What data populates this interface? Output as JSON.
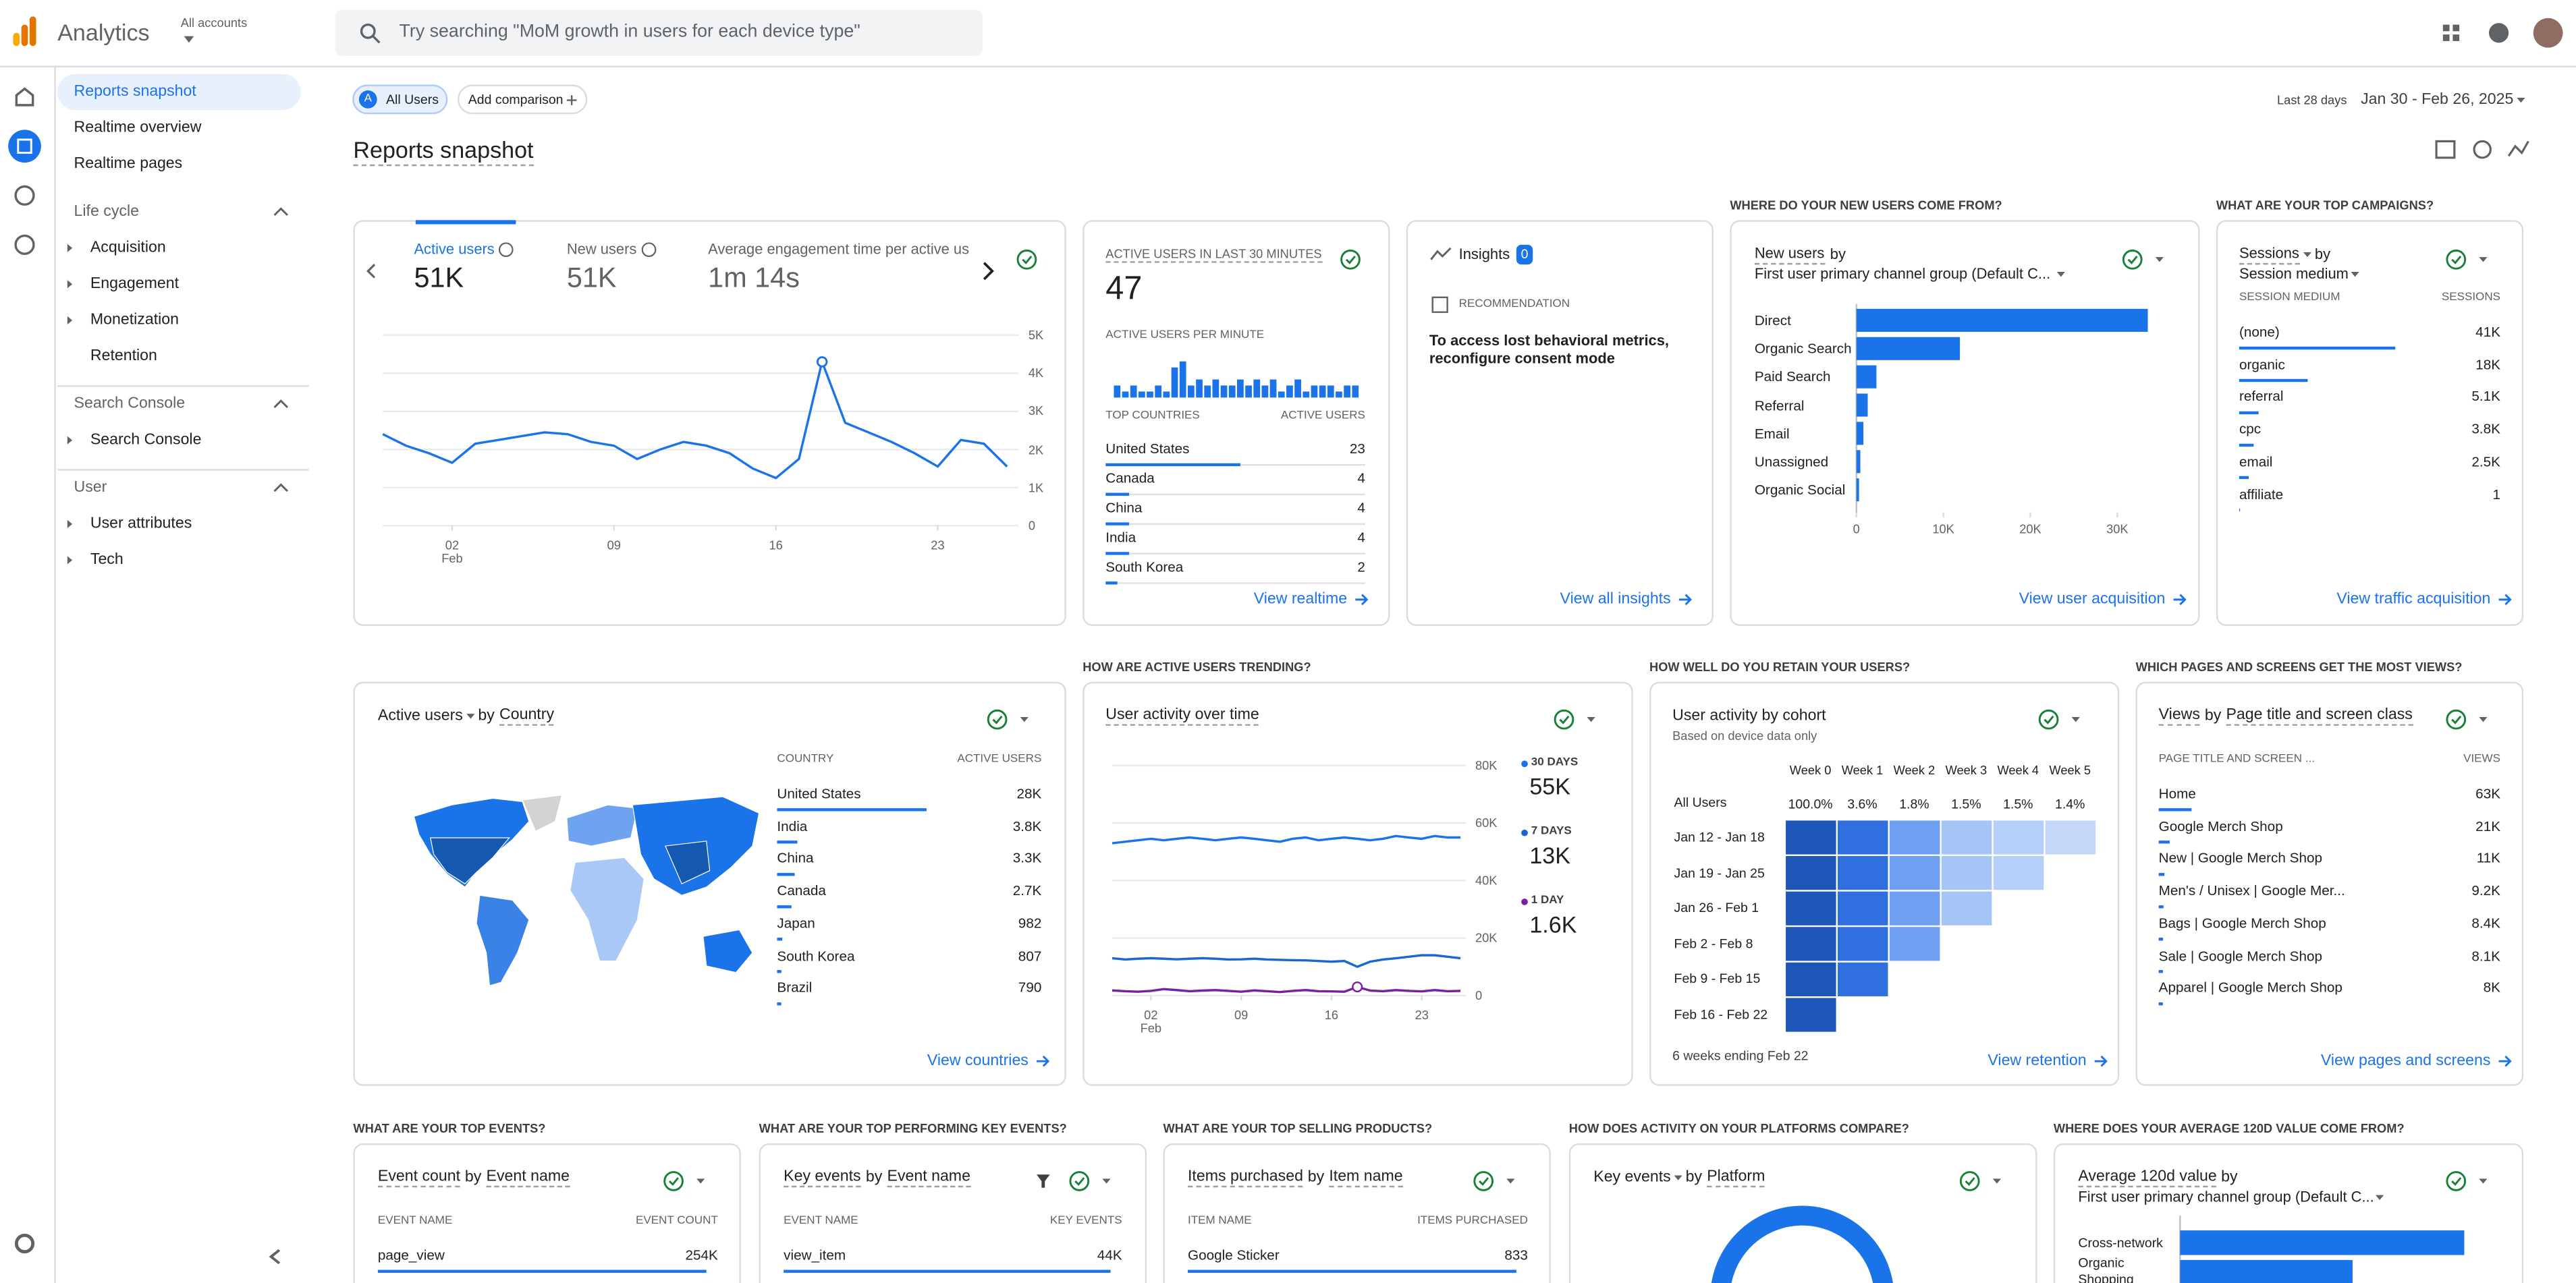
{
  "header": {
    "app_name": "Analytics",
    "account_label": "All accounts",
    "search_placeholder": "Try searching \"MoM growth in users for each device type\""
  },
  "nav": {
    "top_items": [
      "Reports snapshot",
      "Realtime overview",
      "Realtime pages"
    ],
    "sections": [
      {
        "title": "Life cycle",
        "items": [
          "Acquisition",
          "Engagement",
          "Monetization",
          "Retention"
        ],
        "expandable": [
          true,
          true,
          true,
          false
        ]
      },
      {
        "title": "Search Console",
        "items": [
          "Search Console"
        ],
        "expandable": [
          true
        ]
      },
      {
        "title": "User",
        "items": [
          "User attributes",
          "Tech"
        ],
        "expandable": [
          true,
          true
        ]
      }
    ]
  },
  "toolbar": {
    "segment_badge": "A",
    "segment": "All Users",
    "add_comparison": "Add comparison",
    "range_label": "Last 28 days",
    "date_range": "Jan 30 - Feb 26, 2025"
  },
  "page_title": "Reports snapshot",
  "overview": {
    "metrics": [
      {
        "label": "Active users",
        "value": "51K"
      },
      {
        "label": "New users",
        "value": "51K"
      },
      {
        "label": "Average engagement time per active us",
        "value": "1m 14s"
      }
    ],
    "chart_data": {
      "type": "line",
      "color": "#1a73e8",
      "values": [
        2400,
        2100,
        1900,
        1650,
        2150,
        2250,
        2350,
        2450,
        2400,
        2200,
        2100,
        1750,
        2000,
        2200,
        2100,
        1900,
        1500,
        1250,
        1750,
        4300,
        2700,
        2450,
        2200,
        1900,
        1550,
        2250,
        2150,
        1550
      ],
      "xlim": [
        0,
        27
      ],
      "xticks": [
        {
          "value": 3,
          "label": "02"
        },
        {
          "value": 10,
          "label": "09"
        },
        {
          "value": 17,
          "label": "16"
        },
        {
          "value": 24,
          "label": "23"
        }
      ],
      "xtick_month": "Feb",
      "ylim": [
        0,
        5000
      ],
      "yticks": [
        0,
        {
          "value": 1000,
          "label": "1K"
        },
        {
          "value": 2000,
          "label": "2K"
        },
        {
          "value": 3000,
          "label": "3K"
        },
        {
          "value": 4000,
          "label": "4K"
        },
        {
          "value": 5000,
          "label": "5K"
        }
      ],
      "grid": true
    }
  },
  "realtime": {
    "title": "ACTIVE USERS IN LAST 30 MINUTES",
    "value": "47",
    "per_minute_label": "ACTIVE USERS PER MINUTE",
    "per_minute": [
      2,
      1,
      2,
      1,
      1,
      2,
      1,
      5,
      6,
      2,
      3,
      2,
      3,
      2,
      2,
      3,
      2,
      3,
      2,
      3,
      1,
      2,
      3,
      1,
      2,
      2,
      2,
      1,
      2,
      2
    ],
    "headers": [
      "TOP COUNTRIES",
      "ACTIVE USERS"
    ],
    "categories": [
      "United States",
      "Canada",
      "China",
      "India",
      "South Korea"
    ],
    "values": [
      23,
      4,
      4,
      4,
      2
    ],
    "link": "View realtime"
  },
  "insights": {
    "title": "Insights",
    "count": 0,
    "recommendation_label": "RECOMMENDATION",
    "message": "To access lost behavioral metrics, reconfigure consent mode",
    "link": "View all insights"
  },
  "new_users": {
    "question": "WHERE DO YOUR NEW USERS COME FROM?",
    "metric": "New users",
    "by": "by",
    "dimension": "First user primary channel group (Default C...",
    "chart_data": {
      "type": "bar",
      "orientation": "horizontal",
      "color": "#1a73e8",
      "categories": [
        "Direct",
        "Organic Search",
        "Paid Search",
        "Referral",
        "Email",
        "Unassigned",
        "Organic Social"
      ],
      "values": [
        33500,
        11900,
        2300,
        1300,
        800,
        450,
        300
      ],
      "xlim": [
        0,
        34000
      ],
      "xticks": [
        0,
        {
          "value": 10000,
          "label": "10K"
        },
        {
          "value": 20000,
          "label": "20K"
        },
        {
          "value": 30000,
          "label": "30K"
        }
      ]
    },
    "link": "View user acquisition"
  },
  "campaigns": {
    "question": "WHAT ARE YOUR TOP CAMPAIGNS?",
    "metric": "Sessions",
    "by": "by",
    "dimension": "Session medium",
    "headers": [
      "SESSION MEDIUM",
      "SESSIONS"
    ],
    "categories": [
      "(none)",
      "organic",
      "referral",
      "cpc",
      "email",
      "affiliate"
    ],
    "values": [
      41000,
      18000,
      5100,
      3800,
      2500,
      1
    ],
    "value_labels": [
      "41K",
      "18K",
      "5.1K",
      "3.8K",
      "2.5K",
      "1"
    ],
    "link": "View traffic acquisition"
  },
  "countries": {
    "metric": "Active users",
    "by": "by",
    "dimension": "Country",
    "headers": [
      "COUNTRY",
      "ACTIVE USERS"
    ],
    "categories": [
      "United States",
      "India",
      "China",
      "Canada",
      "Japan",
      "South Korea",
      "Brazil"
    ],
    "values": [
      28000,
      3800,
      3300,
      2700,
      982,
      807,
      790
    ],
    "value_labels": [
      "28K",
      "3.8K",
      "3.3K",
      "2.7K",
      "982",
      "807",
      "790"
    ],
    "link": "View countries"
  },
  "trend": {
    "question": "HOW ARE ACTIVE USERS TRENDING?",
    "title": "User activity over time",
    "chart_data": {
      "type": "line",
      "series": [
        {
          "name": "30 DAYS",
          "value_label": "55K",
          "color": "#1a73e8",
          "values": [
            53000,
            53500,
            54000,
            54500,
            54000,
            54500,
            55000,
            54500,
            54000,
            54500,
            55000,
            54500,
            54000,
            53500,
            54500,
            55000,
            54000,
            54500,
            55000,
            54500,
            54000,
            54500,
            55500,
            55000,
            54500,
            55500,
            55000,
            55000
          ]
        },
        {
          "name": "7 DAYS",
          "value_label": "13K",
          "color": "#1967d2",
          "values": [
            13000,
            12500,
            12800,
            13000,
            12800,
            12600,
            12800,
            13000,
            12800,
            12500,
            12600,
            12800,
            12500,
            12400,
            12300,
            12200,
            12000,
            11800,
            12000,
            10000,
            11800,
            12500,
            13000,
            13500,
            14000,
            14000,
            13500,
            13000
          ]
        },
        {
          "name": "1 DAY",
          "value_label": "1.6K",
          "color": "#7b1fa2",
          "values": [
            1800,
            1500,
            1300,
            1600,
            2200,
            1900,
            1500,
            1700,
            1900,
            1600,
            1300,
            1800,
            1500,
            1200,
            1600,
            1900,
            1500,
            1400,
            1300,
            3000,
            1700,
            1500,
            1900,
            1600,
            1400,
            1900,
            1500,
            1600
          ]
        }
      ],
      "xlim": [
        0,
        27
      ],
      "xticks": [
        {
          "value": 3,
          "label": "02"
        },
        {
          "value": 10,
          "label": "09"
        },
        {
          "value": 17,
          "label": "16"
        },
        {
          "value": 24,
          "label": "23"
        }
      ],
      "xtick_month": "Feb",
      "ylim": [
        0,
        80000
      ],
      "yticks": [
        0,
        {
          "value": 20000,
          "label": "20K"
        },
        {
          "value": 40000,
          "label": "40K"
        },
        {
          "value": 60000,
          "label": "60K"
        },
        {
          "value": 80000,
          "label": "80K"
        }
      ]
    }
  },
  "cohort": {
    "question": "HOW WELL DO YOU RETAIN YOUR USERS?",
    "title": "User activity by cohort",
    "subtitle": "Based on device data only",
    "columns": [
      "Week 0",
      "Week 1",
      "Week 2",
      "Week 3",
      "Week 4",
      "Week 5"
    ],
    "all_users_label": "All Users",
    "all_users": [
      "100.0%",
      "3.6%",
      "1.8%",
      "1.5%",
      "1.5%",
      "1.4%"
    ],
    "rows": [
      "Jan 12 - Jan 18",
      "Jan 19 - Jan 25",
      "Jan 26 - Feb 1",
      "Feb 2 - Feb 8",
      "Feb 9 - Feb 15",
      "Feb 16 - Feb 22"
    ],
    "footnote": "6 weeks ending Feb 22",
    "link": "View retention"
  },
  "pages": {
    "question": "WHICH PAGES AND SCREENS GET THE MOST VIEWS?",
    "metric": "Views",
    "by": "by",
    "dimension": "Page title and screen class",
    "headers": [
      "PAGE TITLE AND SCREEN ...",
      "VIEWS"
    ],
    "categories": [
      "Home",
      "Google Merch Shop",
      "New | Google Merch Shop",
      "Men's / Unisex | Google Mer...",
      "Bags | Google Merch Shop",
      "Sale | Google Merch Shop",
      "Apparel | Google Merch Shop"
    ],
    "values": [
      63000,
      21000,
      11000,
      9200,
      8400,
      8100,
      8000
    ],
    "value_labels": [
      "63K",
      "21K",
      "11K",
      "9.2K",
      "8.4K",
      "8.1K",
      "8K"
    ],
    "link": "View pages and screens"
  },
  "bottom": [
    {
      "question": "WHAT ARE YOUR TOP EVENTS?",
      "metric": "Event count",
      "by": "by",
      "dimension": "Event name",
      "headers": [
        "EVENT NAME",
        "EVENT COUNT"
      ],
      "categories": [
        "page_view"
      ],
      "values": [
        254000
      ],
      "value_labels": [
        "254K"
      ]
    },
    {
      "question": "WHAT ARE YOUR TOP PERFORMING KEY EVENTS?",
      "metric": "Key events",
      "by": "by",
      "dimension": "Event name",
      "headers": [
        "EVENT NAME",
        "KEY EVENTS"
      ],
      "categories": [
        "view_item"
      ],
      "values": [
        44000
      ],
      "value_labels": [
        "44K"
      ]
    },
    {
      "question": "WHAT ARE YOUR TOP SELLING PRODUCTS?",
      "metric": "Items purchased",
      "by": "by",
      "dimension": "Item name",
      "headers": [
        "ITEM NAME",
        "ITEMS PURCHASED"
      ],
      "categories": [
        "Google Sticker"
      ],
      "values": [
        833
      ],
      "value_labels": [
        "833"
      ]
    }
  ],
  "platforms": {
    "question": "HOW DOES ACTIVITY ON YOUR PLATFORMS COMPARE?",
    "metric": "Key events",
    "by": "by",
    "dimension": "Platform"
  },
  "value_120d": {
    "question": "WHERE DOES YOUR AVERAGE 120D VALUE COME FROM?",
    "metric": "Average 120d value",
    "by": "by",
    "dimension": "First user primary channel group (Default C...",
    "categories": [
      "Cross-network",
      "Organic Shopping"
    ]
  }
}
